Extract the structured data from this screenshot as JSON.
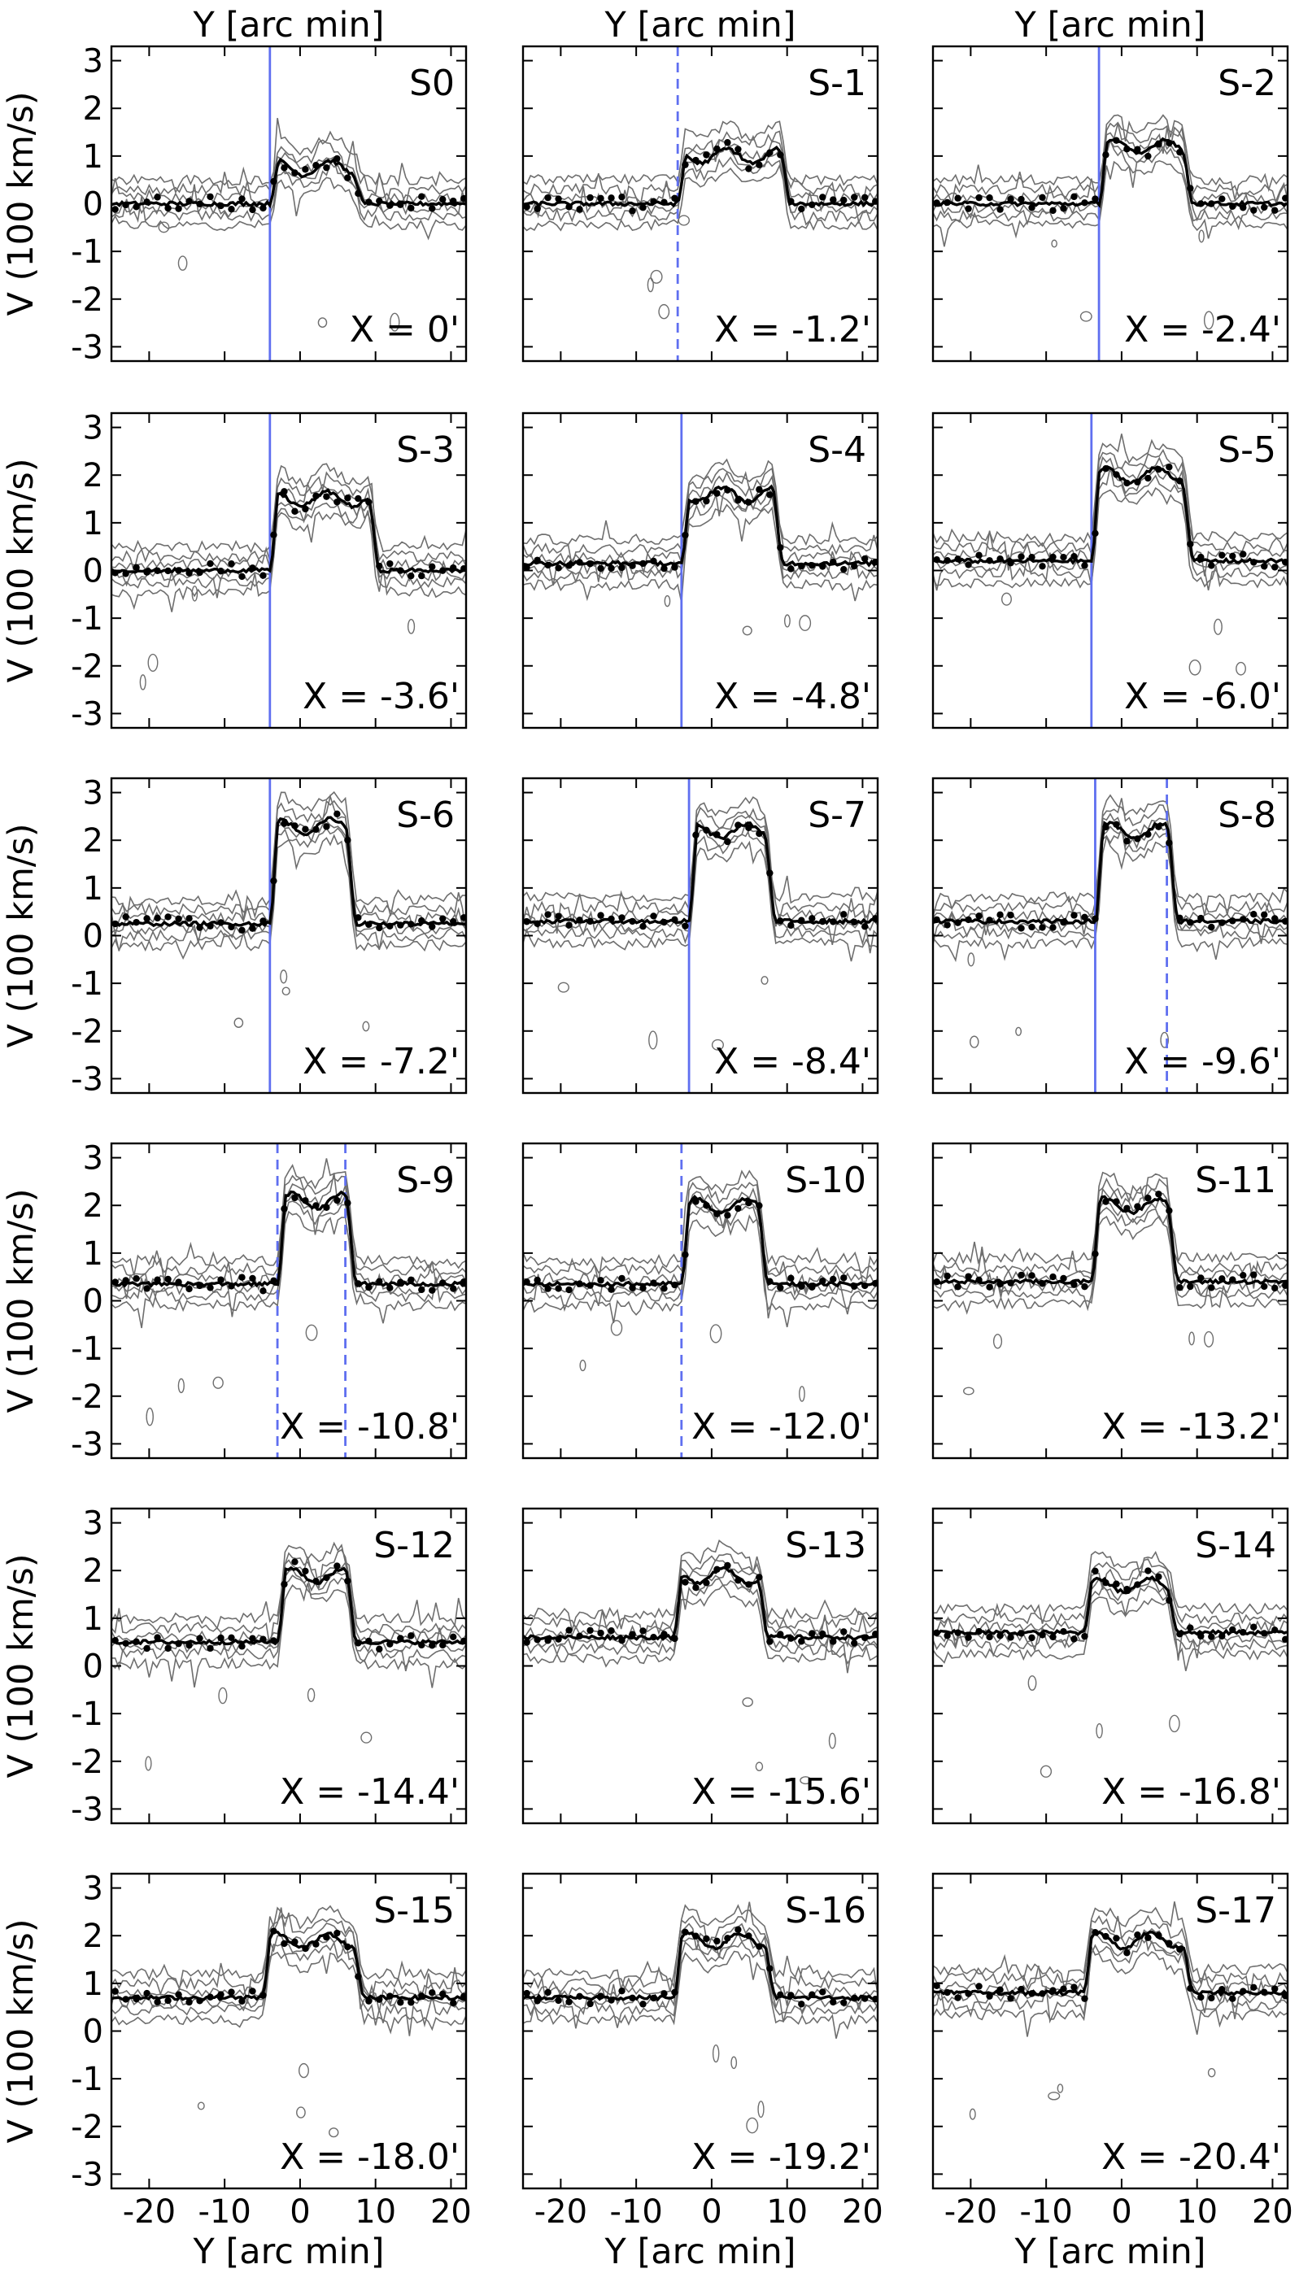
{
  "chart_data": {
    "type": "line",
    "layout": "grid 6 rows x 3 columns of position-velocity panels",
    "xlabel": "Y [arc min]",
    "ylabel": "V (100 km/s)",
    "xlim": [
      -25,
      22
    ],
    "ylim": [
      -3.3,
      3.3
    ],
    "xticks": [
      -20,
      -10,
      0,
      10,
      20
    ],
    "yticks": [
      -3,
      -2,
      -1,
      0,
      1,
      2,
      3
    ],
    "colors": {
      "profile": "#000000",
      "contour": "#6e6e6e",
      "marker": "#5f6ff0"
    },
    "panels": [
      {
        "id": "S0",
        "x_offset": "X = 0'",
        "solid": [
          -4
        ],
        "dashed": [],
        "low": 0.0,
        "high": 0.75,
        "start": -4,
        "end": 7,
        "peak_shift": 0.7
      },
      {
        "id": "S-1",
        "x_offset": "X = -1.2'",
        "solid": [],
        "dashed": [
          -4.5
        ],
        "low": 0.0,
        "high": 1.0,
        "start": -4.5,
        "end": 9,
        "peak_shift": 2
      },
      {
        "id": "S-2",
        "x_offset": "X = -2.4'",
        "solid": [
          -3
        ],
        "dashed": [],
        "low": 0.0,
        "high": 1.2,
        "start": -3,
        "end": 8,
        "peak_shift": 0
      },
      {
        "id": "S-3",
        "x_offset": "X = -3.6'",
        "solid": [
          -4
        ],
        "dashed": [],
        "low": 0.0,
        "high": 1.5,
        "start": -4,
        "end": 9,
        "peak_shift": 1
      },
      {
        "id": "S-4",
        "x_offset": "X = -4.8'",
        "solid": [
          -4
        ],
        "dashed": [],
        "low": 0.15,
        "high": 1.6,
        "start": -4,
        "end": 8,
        "peak_shift": 3
      },
      {
        "id": "S-5",
        "x_offset": "X = -6.0'",
        "solid": [
          -4
        ],
        "dashed": [],
        "low": 0.2,
        "high": 2.0,
        "start": -4,
        "end": 8,
        "peak_shift": 0
      },
      {
        "id": "S-6",
        "x_offset": "X = -7.2'",
        "solid": [
          -4
        ],
        "dashed": [],
        "low": 0.25,
        "high": 2.3,
        "start": -4,
        "end": 6,
        "peak_shift": 0.5
      },
      {
        "id": "S-7",
        "x_offset": "X = -8.4'",
        "solid": [
          -3
        ],
        "dashed": [],
        "low": 0.3,
        "high": 2.2,
        "start": -3,
        "end": 7,
        "peak_shift": 1
      },
      {
        "id": "S-8",
        "x_offset": "X = -9.6'",
        "solid": [
          -3.5
        ],
        "dashed": [
          6
        ],
        "low": 0.3,
        "high": 2.2,
        "start": -3.5,
        "end": 6,
        "peak_shift": 0
      },
      {
        "id": "S-9",
        "x_offset": "X = -10.8'",
        "solid": [],
        "dashed": [
          -3,
          6
        ],
        "low": 0.35,
        "high": 2.1,
        "start": -3,
        "end": 6,
        "peak_shift": 0
      },
      {
        "id": "S-10",
        "x_offset": "X = -12.0'",
        "solid": [],
        "dashed": [
          -4
        ],
        "low": 0.35,
        "high": 2.0,
        "start": -4,
        "end": 6,
        "peak_shift": 0
      },
      {
        "id": "S-11",
        "x_offset": "X = -13.2'",
        "solid": [],
        "dashed": [],
        "low": 0.4,
        "high": 2.0,
        "start": -4,
        "end": 6,
        "peak_shift": 0
      },
      {
        "id": "S-12",
        "x_offset": "X = -14.4'",
        "solid": [],
        "dashed": [],
        "low": 0.5,
        "high": 1.9,
        "start": -3,
        "end": 6,
        "peak_shift": 0
      },
      {
        "id": "S-13",
        "x_offset": "X = -15.6'",
        "solid": [],
        "dashed": [],
        "low": 0.6,
        "high": 1.9,
        "start": -5,
        "end": 6,
        "peak_shift": 2
      },
      {
        "id": "S-14",
        "x_offset": "X = -16.8'",
        "solid": [],
        "dashed": [],
        "low": 0.7,
        "high": 1.7,
        "start": -5,
        "end": 6,
        "peak_shift": 0
      },
      {
        "id": "S-15",
        "x_offset": "X = -18.0'",
        "solid": [],
        "dashed": [],
        "low": 0.7,
        "high": 1.9,
        "start": -5,
        "end": 7,
        "peak_shift": 0
      },
      {
        "id": "S-16",
        "x_offset": "X = -19.2'",
        "solid": [],
        "dashed": [],
        "low": 0.7,
        "high": 1.9,
        "start": -5,
        "end": 7,
        "peak_shift": 0
      },
      {
        "id": "S-17",
        "x_offset": "X = -20.4'",
        "solid": [],
        "dashed": [],
        "low": 0.8,
        "high": 1.9,
        "start": -5,
        "end": 8,
        "peak_shift": 0
      }
    ]
  }
}
